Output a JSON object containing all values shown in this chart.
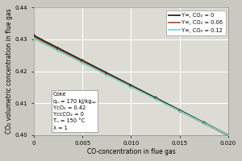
{
  "xlabel": "CO-concentration in flue gas",
  "ylabel": "CO₂ volumetric concentration in flue gas",
  "xlim": [
    0,
    0.02
  ],
  "ylim": [
    0.4,
    0.44
  ],
  "xticks": [
    0,
    0.005,
    0.01,
    0.015,
    0.02
  ],
  "xtick_labels": [
    "0",
    "0.005",
    "0.010",
    "0.015",
    "0.020"
  ],
  "yticks": [
    0.4,
    0.41,
    0.42,
    0.43,
    0.44
  ],
  "lines": [
    {
      "label": "Y∞, CO₂ = 0",
      "color": "#111111",
      "lw": 1.2,
      "marker": "+",
      "markersize": 3.5,
      "y0": 0.4312,
      "slope": -1.56
    },
    {
      "label": "Y∞, CO₂ = 0.06",
      "color": "#a05020",
      "lw": 1.2,
      "marker": "+",
      "markersize": 3.5,
      "y0": 0.4308,
      "slope": -1.55
    },
    {
      "label": "Y∞, CO₂ = 0.12",
      "color": "#70d8d0",
      "lw": 1.2,
      "marker": "+",
      "markersize": 3.5,
      "y0": 0.4302,
      "slope": -1.51
    }
  ],
  "annotation_lines": [
    "Coke",
    "qᵤ = 170 kJ/kgᵤₚ",
    "YᴄO₂ = 0.42",
    "YᴄᴄCO₂ = 0",
    "Tᵤ = 150 °C",
    "λ = 1"
  ],
  "bg_color": "#c9c9c2",
  "plot_bg_color": "#dcdcd5",
  "grid_color": "#ffffff",
  "legend_fontsize": 4.8,
  "axis_label_fontsize": 5.5,
  "tick_fontsize": 5.0,
  "annotation_fontsize": 4.8
}
